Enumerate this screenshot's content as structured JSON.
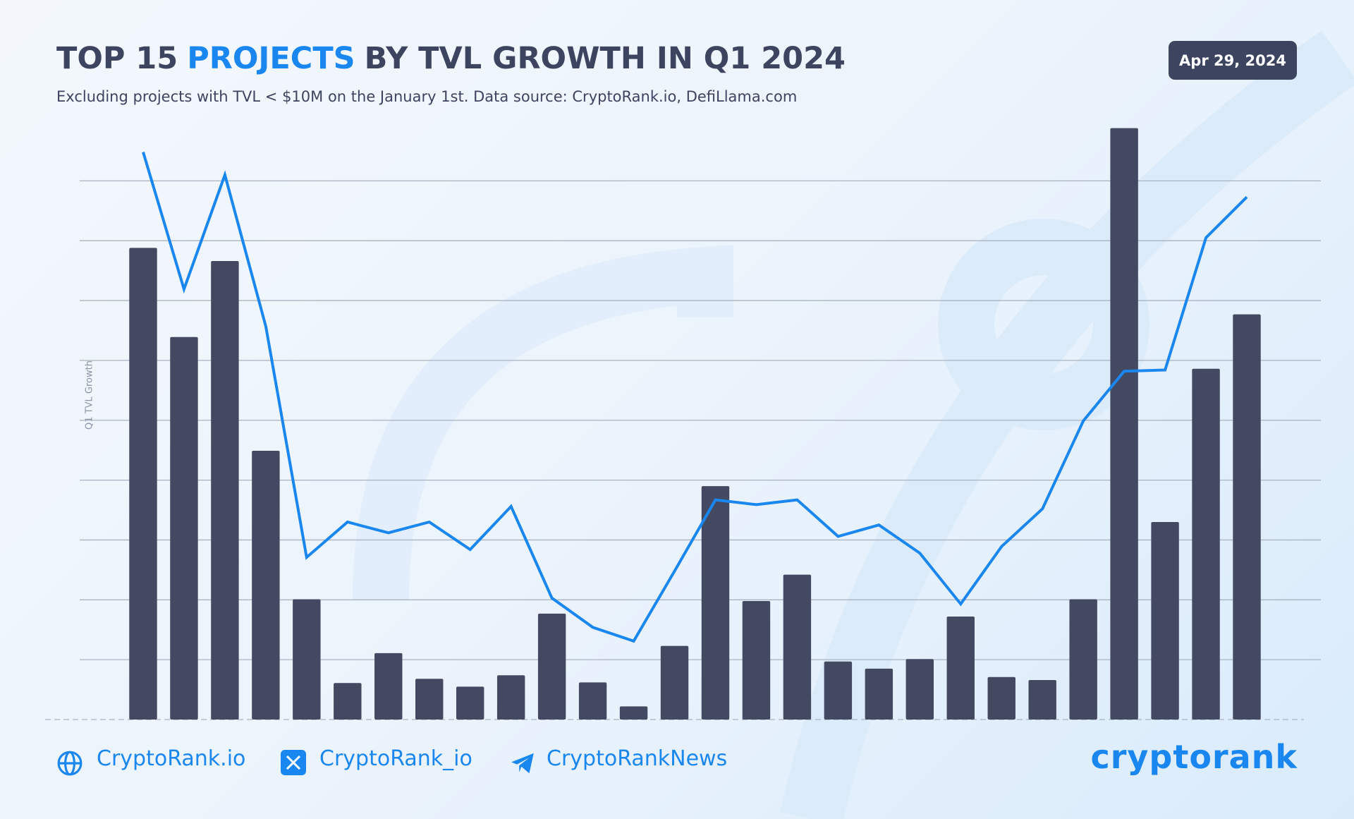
{
  "header": {
    "title_parts": [
      "TOP 15",
      "PROJECTS",
      "BY TVL GROWTH IN Q1 2024"
    ],
    "subtitle": "Excluding projects with TVL < $10M on the January 1st. Data source: CryptoRank.io, DefiLlama.com",
    "date": "Apr 29, 2024"
  },
  "chart_data": {
    "type": "bar",
    "y_label": "Q1 TVL Growth",
    "categories": [
      null,
      null,
      null,
      null,
      null,
      null,
      null,
      null,
      null,
      null,
      null,
      null,
      null,
      null,
      null,
      null,
      null,
      null,
      null,
      null,
      null,
      null,
      null,
      null,
      null,
      null,
      null,
      null
    ],
    "series": [
      {
        "type": "bar",
        "color": "#434960",
        "values": [
          7.88,
          6.39,
          7.66,
          4.49,
          2.01,
          0.61,
          1.11,
          0.68,
          0.55,
          0.74,
          1.77,
          0.62,
          0.22,
          1.23,
          3.9,
          1.98,
          2.42,
          0.97,
          0.85,
          1.01,
          1.72,
          0.71,
          0.66,
          2.01,
          9.88,
          3.3,
          5.86,
          6.77
        ]
      },
      {
        "type": "line",
        "color": "#1a87f0",
        "values": [
          9.48,
          7.19,
          9.1,
          6.57,
          2.71,
          3.3,
          3.12,
          3.3,
          2.84,
          3.56,
          2.03,
          1.54,
          1.31,
          2.48,
          3.67,
          3.59,
          3.67,
          3.06,
          3.25,
          2.78,
          1.93,
          2.89,
          3.52,
          4.99,
          5.82,
          5.84,
          8.05,
          8.73
        ]
      }
    ],
    "ylim": [
      0,
      10
    ],
    "yticks": [
      1,
      2,
      3,
      4,
      5,
      6,
      7,
      8,
      9
    ],
    "grid": true
  },
  "footer": {
    "links": [
      "CryptoRank.io",
      "CryptoRank_io",
      "CryptoRankNews"
    ],
    "logo": "cryptorank"
  }
}
